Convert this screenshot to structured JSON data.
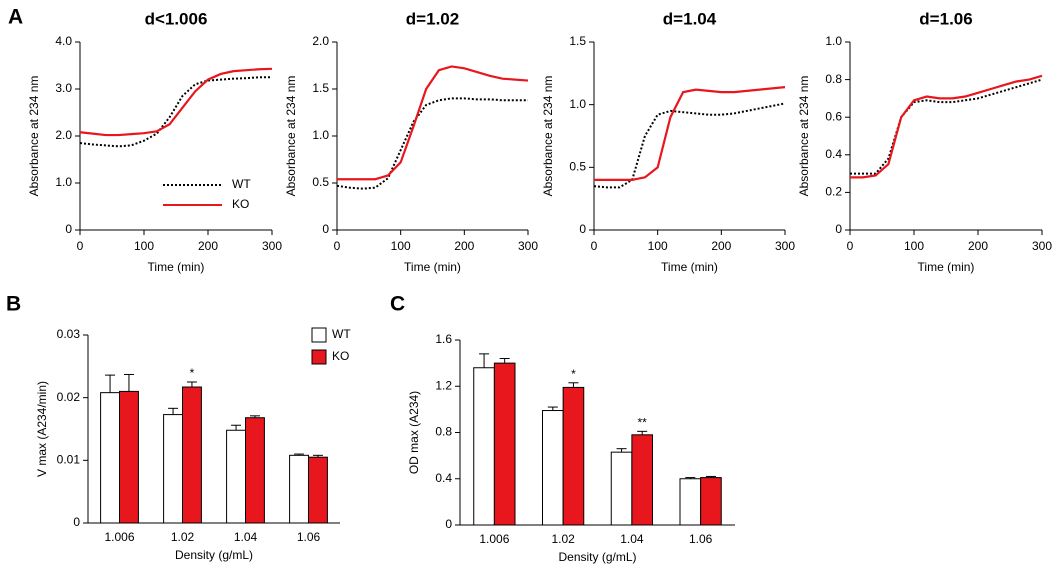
{
  "chart_data": [
    {
      "type": "line",
      "panel": "A",
      "title": "d<1.006",
      "xlabel": "Time (min)",
      "ylabel": "Absorbance at 234 nm",
      "x": [
        0,
        20,
        40,
        60,
        80,
        100,
        120,
        140,
        160,
        180,
        200,
        220,
        240,
        260,
        280,
        300
      ],
      "xlim": [
        0,
        300
      ],
      "xticks": [
        0,
        100,
        200,
        300
      ],
      "ylim": [
        0,
        4
      ],
      "yticks": [
        0,
        {
          "value": 1,
          "label": "1.0"
        },
        {
          "value": 2,
          "label": "2.0"
        },
        {
          "value": 3,
          "label": "3.0"
        },
        {
          "value": 4,
          "label": "4.0"
        }
      ],
      "legend": "lower right",
      "series": [
        {
          "name": "WT",
          "color": "#000000",
          "dash": true,
          "values": [
            1.85,
            1.82,
            1.8,
            1.78,
            1.8,
            1.9,
            2.05,
            2.4,
            2.85,
            3.1,
            3.18,
            3.2,
            3.22,
            3.23,
            3.25,
            3.25
          ]
        },
        {
          "name": "KO",
          "color": "#e8171d",
          "dash": false,
          "values": [
            2.08,
            2.05,
            2.02,
            2.02,
            2.04,
            2.06,
            2.1,
            2.25,
            2.6,
            2.95,
            3.2,
            3.32,
            3.38,
            3.4,
            3.42,
            3.43
          ]
        }
      ]
    },
    {
      "type": "line",
      "title": "d=1.02",
      "xlabel": "Time (min)",
      "ylabel": "Absorbance at 234 nm",
      "x": [
        0,
        20,
        40,
        60,
        80,
        100,
        120,
        140,
        160,
        180,
        200,
        220,
        240,
        260,
        280,
        300
      ],
      "xlim": [
        0,
        300
      ],
      "xticks": [
        0,
        100,
        200,
        300
      ],
      "ylim": [
        0,
        2
      ],
      "yticks": [
        0,
        0.5,
        {
          "value": 1,
          "label": "1.0"
        },
        1.5,
        {
          "value": 2,
          "label": "2.0"
        }
      ],
      "series": [
        {
          "color": "#000000",
          "dash": true,
          "values": [
            0.47,
            0.45,
            0.44,
            0.45,
            0.55,
            0.85,
            1.15,
            1.33,
            1.38,
            1.4,
            1.4,
            1.39,
            1.39,
            1.38,
            1.38,
            1.38
          ]
        },
        {
          "color": "#e8171d",
          "dash": false,
          "values": [
            0.54,
            0.54,
            0.54,
            0.54,
            0.58,
            0.72,
            1.1,
            1.5,
            1.7,
            1.74,
            1.72,
            1.68,
            1.64,
            1.61,
            1.6,
            1.59
          ]
        }
      ]
    },
    {
      "type": "line",
      "title": "d=1.04",
      "xlabel": "Time (min)",
      "ylabel": "Absorbance at 234 nm",
      "x": [
        0,
        20,
        40,
        60,
        80,
        100,
        120,
        140,
        160,
        180,
        200,
        220,
        240,
        260,
        280,
        300
      ],
      "xlim": [
        0,
        300
      ],
      "xticks": [
        0,
        100,
        200,
        300
      ],
      "ylim": [
        0,
        1.5
      ],
      "yticks": [
        0,
        0.5,
        {
          "value": 1,
          "label": "1.0"
        },
        1.5
      ],
      "series": [
        {
          "color": "#000000",
          "dash": true,
          "values": [
            0.35,
            0.34,
            0.34,
            0.4,
            0.75,
            0.92,
            0.95,
            0.94,
            0.93,
            0.92,
            0.92,
            0.93,
            0.95,
            0.97,
            0.99,
            1.01
          ]
        },
        {
          "color": "#e8171d",
          "dash": false,
          "values": [
            0.4,
            0.4,
            0.4,
            0.4,
            0.42,
            0.5,
            0.9,
            1.1,
            1.12,
            1.11,
            1.1,
            1.1,
            1.11,
            1.12,
            1.13,
            1.14
          ]
        }
      ]
    },
    {
      "type": "line",
      "title": "d=1.06",
      "xlabel": "Time (min)",
      "ylabel": "Absorbance at 234 nm",
      "x": [
        0,
        20,
        40,
        60,
        80,
        100,
        120,
        140,
        160,
        180,
        200,
        220,
        240,
        260,
        280,
        300
      ],
      "xlim": [
        0,
        300
      ],
      "xticks": [
        0,
        100,
        200,
        300
      ],
      "ylim": [
        0,
        1
      ],
      "yticks": [
        0,
        0.2,
        0.4,
        0.6,
        0.8,
        {
          "value": 1,
          "label": "1.0"
        }
      ],
      "series": [
        {
          "color": "#000000",
          "dash": true,
          "values": [
            0.3,
            0.3,
            0.3,
            0.38,
            0.6,
            0.68,
            0.69,
            0.68,
            0.68,
            0.69,
            0.7,
            0.72,
            0.74,
            0.76,
            0.78,
            0.8
          ]
        },
        {
          "color": "#e8171d",
          "dash": false,
          "values": [
            0.28,
            0.28,
            0.29,
            0.35,
            0.6,
            0.69,
            0.71,
            0.7,
            0.7,
            0.71,
            0.73,
            0.75,
            0.77,
            0.79,
            0.8,
            0.82
          ]
        }
      ]
    },
    {
      "type": "bar",
      "panel": "B",
      "xlabel": "Density (g/mL)",
      "ylabel": "V max (A234/min)",
      "categories": [
        "1.006",
        "1.02",
        "1.04",
        "1.06"
      ],
      "ylim": [
        0,
        0.03
      ],
      "yticks": [
        0,
        0.01,
        0.02,
        0.03
      ],
      "legend": "upper right",
      "series": [
        {
          "name": "WT",
          "color": "#ffffff",
          "values": [
            0.0208,
            0.0173,
            0.0148,
            0.0108
          ],
          "errors": [
            0.0028,
            0.001,
            0.0008,
            0.0002
          ],
          "significance": [
            null,
            null,
            null,
            null
          ]
        },
        {
          "name": "KO",
          "color": "#e8171d",
          "values": [
            0.021,
            0.0217,
            0.0168,
            0.0105
          ],
          "errors": [
            0.0027,
            0.0008,
            0.0003,
            0.0003
          ],
          "significance": [
            null,
            "*",
            null,
            null
          ]
        }
      ]
    },
    {
      "type": "bar",
      "panel": "C",
      "xlabel": "Density (g/mL)",
      "ylabel": "OD max (A234)",
      "categories": [
        "1.006",
        "1.02",
        "1.04",
        "1.06"
      ],
      "ylim": [
        0,
        1.6
      ],
      "yticks": [
        0,
        0.4,
        0.8,
        1.2,
        1.6
      ],
      "series": [
        {
          "color": "#ffffff",
          "values": [
            1.36,
            0.99,
            0.63,
            0.4
          ],
          "errors": [
            0.12,
            0.03,
            0.03,
            0.01
          ],
          "significance": [
            null,
            null,
            null,
            null
          ]
        },
        {
          "color": "#e8171d",
          "values": [
            1.4,
            1.19,
            0.78,
            0.41
          ],
          "errors": [
            0.04,
            0.04,
            0.03,
            0.01
          ],
          "significance": [
            null,
            "*",
            "**",
            null
          ]
        }
      ]
    }
  ]
}
